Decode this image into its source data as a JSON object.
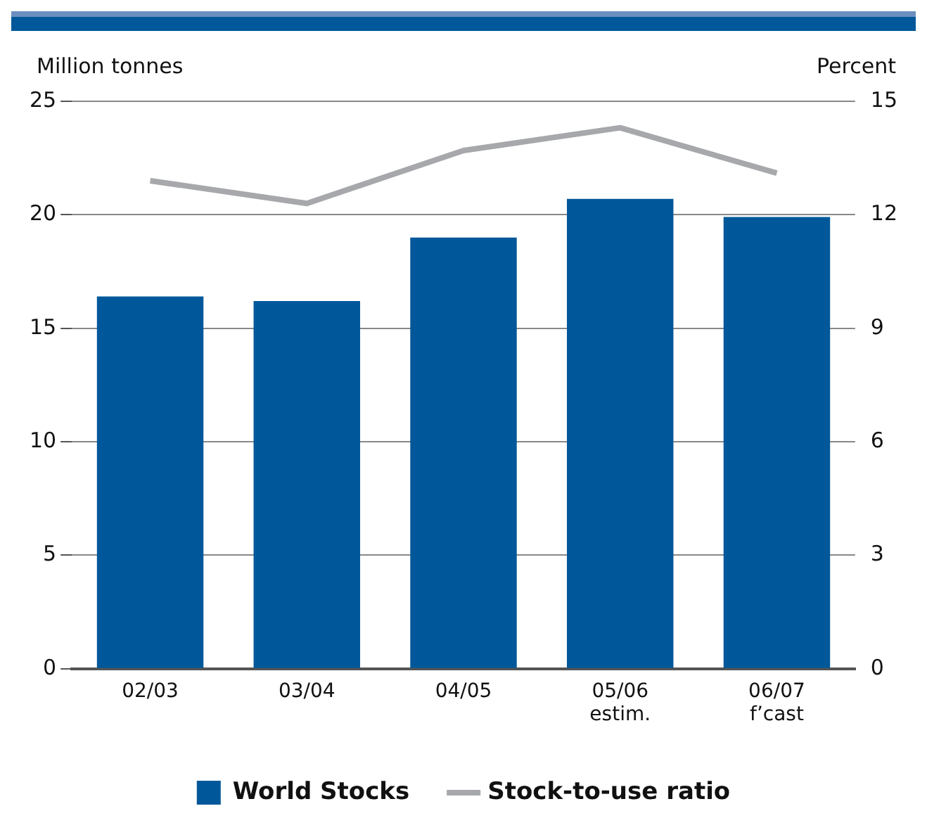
{
  "chart_data": {
    "type": "bar",
    "ylabel": "Million tonnes",
    "y2label": "Percent",
    "categories": [
      "02/03",
      "03/04",
      "04/05",
      "05/06\nestim.",
      "06/07\nf’cast"
    ],
    "series": [
      {
        "name": "World Stocks",
        "color": "#00589a",
        "values": [
          16.4,
          16.2,
          19.0,
          20.7,
          19.9
        ]
      },
      {
        "name": "Stock-to-use ratio",
        "type": "line",
        "axis": "y2",
        "color": "#a6a8ab",
        "marker": "none",
        "values": [
          12.9,
          12.3,
          13.7,
          14.3,
          13.1
        ]
      }
    ],
    "ylim": [
      0,
      25
    ],
    "yticks": [
      0,
      5,
      10,
      15,
      20,
      25
    ],
    "y2lim": [
      0,
      15
    ],
    "y2ticks": [
      0,
      3,
      6,
      9,
      12,
      15
    ],
    "grid": "y",
    "legend": "bottom"
  }
}
